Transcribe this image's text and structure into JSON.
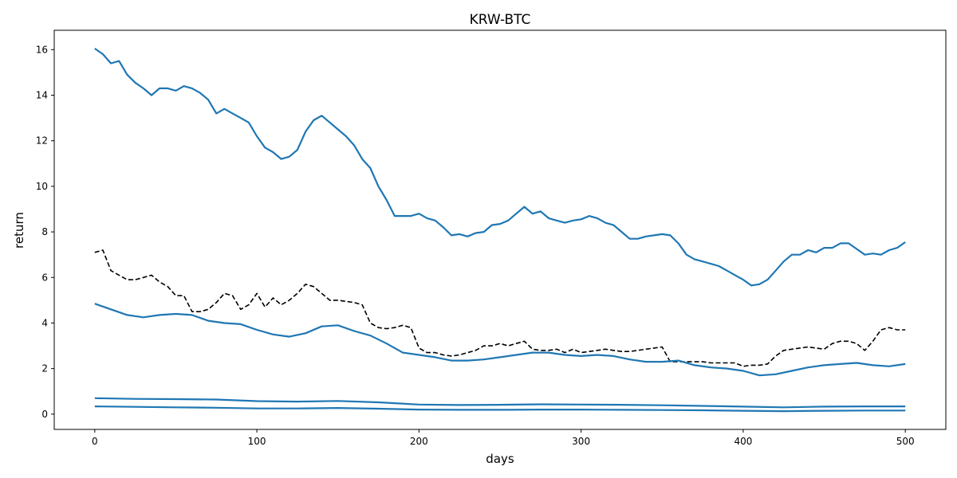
{
  "chart_data": {
    "type": "line",
    "title": "KRW-BTC",
    "xlabel": "days",
    "ylabel": "return",
    "xlim": [
      -25,
      525
    ],
    "ylim": [
      -0.67,
      16.85
    ],
    "xticks": [
      0,
      100,
      200,
      300,
      400,
      500
    ],
    "xtick_labels": [
      "0",
      "100",
      "200",
      "300",
      "400",
      "500"
    ],
    "yticks": [
      0,
      2,
      4,
      6,
      8,
      10,
      12,
      14,
      16
    ],
    "ytick_labels": [
      "0",
      "2",
      "4",
      "6",
      "8",
      "10",
      "12",
      "14",
      "16"
    ],
    "grid": false,
    "legend": "none",
    "colors": {
      "series": "#1f77b4",
      "reference": "#000000"
    },
    "series": [
      {
        "style": "solid",
        "x": [
          0,
          5,
          10,
          15,
          20,
          25,
          30,
          35,
          40,
          45,
          50,
          55,
          60,
          65,
          70,
          75,
          80,
          85,
          90,
          95,
          100,
          105,
          110,
          115,
          120,
          125,
          130,
          135,
          140,
          145,
          150,
          155,
          160,
          165,
          170,
          175,
          180,
          185,
          190,
          195,
          200,
          205,
          210,
          215,
          220,
          225,
          230,
          235,
          240,
          245,
          250,
          255,
          260,
          265,
          270,
          275,
          280,
          285,
          290,
          295,
          300,
          305,
          310,
          315,
          320,
          325,
          330,
          335,
          340,
          345,
          350,
          355,
          360,
          365,
          370,
          375,
          380,
          385,
          390,
          395,
          400,
          405,
          410,
          415,
          420,
          425,
          430,
          435,
          440,
          445,
          450,
          455,
          460,
          465,
          470,
          475,
          480,
          485,
          490,
          495,
          500
        ],
        "values": [
          16.05,
          15.8,
          15.4,
          15.5,
          14.9,
          14.55,
          14.3,
          14.0,
          14.3,
          14.3,
          14.2,
          14.4,
          14.3,
          14.1,
          13.8,
          13.2,
          13.4,
          13.2,
          13.0,
          12.8,
          12.2,
          11.7,
          11.5,
          11.2,
          11.3,
          11.6,
          12.4,
          12.9,
          13.1,
          12.8,
          12.5,
          12.2,
          11.8,
          11.2,
          10.8,
          10.0,
          9.4,
          8.7,
          8.7,
          8.7,
          8.8,
          8.6,
          8.5,
          8.2,
          7.85,
          7.9,
          7.8,
          7.95,
          8.0,
          8.3,
          8.35,
          8.5,
          8.8,
          9.1,
          8.8,
          8.9,
          8.6,
          8.5,
          8.4,
          8.5,
          8.55,
          8.7,
          8.6,
          8.4,
          8.3,
          8.0,
          7.7,
          7.7,
          7.8,
          7.85,
          7.9,
          7.85,
          7.5,
          7.0,
          6.8,
          6.7,
          6.6,
          6.5,
          6.3,
          6.1,
          5.9,
          5.65,
          5.7,
          5.9,
          6.3,
          6.7,
          7.0,
          7.0,
          7.2,
          7.1,
          7.3,
          7.3,
          7.5,
          7.5,
          7.25,
          7.0,
          7.05,
          7.0,
          7.2,
          7.3,
          7.55
        ]
      },
      {
        "style": "dashed",
        "x": [
          0,
          5,
          10,
          15,
          20,
          25,
          30,
          35,
          40,
          45,
          50,
          55,
          60,
          65,
          70,
          75,
          80,
          85,
          90,
          95,
          100,
          105,
          110,
          115,
          120,
          125,
          130,
          135,
          140,
          145,
          150,
          155,
          160,
          165,
          170,
          175,
          180,
          185,
          190,
          195,
          200,
          205,
          210,
          215,
          220,
          225,
          230,
          235,
          240,
          245,
          250,
          255,
          260,
          265,
          270,
          275,
          280,
          285,
          290,
          295,
          300,
          305,
          310,
          315,
          320,
          325,
          330,
          335,
          340,
          345,
          350,
          355,
          360,
          365,
          370,
          375,
          380,
          385,
          390,
          395,
          400,
          405,
          410,
          415,
          420,
          425,
          430,
          435,
          440,
          445,
          450,
          455,
          460,
          465,
          470,
          475,
          480,
          485,
          490,
          495,
          500
        ],
        "values": [
          7.1,
          7.2,
          6.3,
          6.1,
          5.9,
          5.9,
          6.0,
          6.1,
          5.8,
          5.6,
          5.2,
          5.2,
          4.5,
          4.5,
          4.6,
          4.9,
          5.3,
          5.2,
          4.6,
          4.8,
          5.3,
          4.7,
          5.1,
          4.8,
          5.0,
          5.3,
          5.7,
          5.6,
          5.3,
          5.0,
          5.0,
          4.95,
          4.9,
          4.8,
          4.0,
          3.8,
          3.75,
          3.8,
          3.9,
          3.8,
          2.9,
          2.7,
          2.7,
          2.6,
          2.55,
          2.6,
          2.7,
          2.8,
          3.0,
          3.0,
          3.1,
          3.0,
          3.1,
          3.2,
          2.85,
          2.8,
          2.8,
          2.85,
          2.7,
          2.85,
          2.7,
          2.75,
          2.8,
          2.85,
          2.8,
          2.75,
          2.75,
          2.8,
          2.85,
          2.9,
          2.95,
          2.3,
          2.3,
          2.3,
          2.3,
          2.3,
          2.25,
          2.25,
          2.25,
          2.25,
          2.1,
          2.15,
          2.15,
          2.2,
          2.55,
          2.8,
          2.85,
          2.9,
          2.95,
          2.9,
          2.85,
          3.1,
          3.2,
          3.2,
          3.1,
          2.8,
          3.2,
          3.7,
          3.8,
          3.7,
          3.7
        ]
      },
      {
        "style": "solid",
        "x": [
          0,
          10,
          20,
          30,
          40,
          50,
          60,
          70,
          80,
          90,
          100,
          110,
          120,
          130,
          140,
          150,
          160,
          170,
          180,
          190,
          200,
          210,
          220,
          230,
          240,
          250,
          260,
          270,
          280,
          290,
          300,
          310,
          320,
          330,
          340,
          350,
          360,
          370,
          380,
          390,
          400,
          410,
          420,
          430,
          440,
          450,
          460,
          470,
          480,
          490,
          500
        ],
        "values": [
          4.85,
          4.6,
          4.35,
          4.25,
          4.35,
          4.4,
          4.35,
          4.1,
          4.0,
          3.95,
          3.7,
          3.5,
          3.4,
          3.55,
          3.85,
          3.9,
          3.65,
          3.45,
          3.1,
          2.7,
          2.6,
          2.5,
          2.35,
          2.35,
          2.4,
          2.5,
          2.6,
          2.7,
          2.7,
          2.6,
          2.55,
          2.6,
          2.55,
          2.4,
          2.3,
          2.3,
          2.35,
          2.15,
          2.05,
          2.0,
          1.9,
          1.7,
          1.75,
          1.9,
          2.05,
          2.15,
          2.2,
          2.25,
          2.15,
          2.1,
          2.2
        ]
      },
      {
        "style": "solid",
        "x": [
          0,
          25,
          50,
          75,
          100,
          125,
          150,
          175,
          200,
          225,
          250,
          275,
          300,
          325,
          350,
          375,
          400,
          425,
          450,
          475,
          500
        ],
        "values": [
          0.7,
          0.67,
          0.66,
          0.64,
          0.57,
          0.55,
          0.58,
          0.52,
          0.42,
          0.4,
          0.41,
          0.43,
          0.42,
          0.41,
          0.39,
          0.36,
          0.33,
          0.3,
          0.33,
          0.34,
          0.34
        ]
      },
      {
        "style": "solid",
        "x": [
          0,
          25,
          50,
          75,
          100,
          125,
          150,
          175,
          200,
          225,
          250,
          275,
          300,
          325,
          350,
          375,
          400,
          425,
          450,
          475,
          500
        ],
        "values": [
          0.34,
          0.32,
          0.3,
          0.28,
          0.25,
          0.25,
          0.27,
          0.24,
          0.2,
          0.19,
          0.19,
          0.2,
          0.2,
          0.19,
          0.18,
          0.17,
          0.15,
          0.13,
          0.15,
          0.16,
          0.16
        ]
      }
    ]
  }
}
